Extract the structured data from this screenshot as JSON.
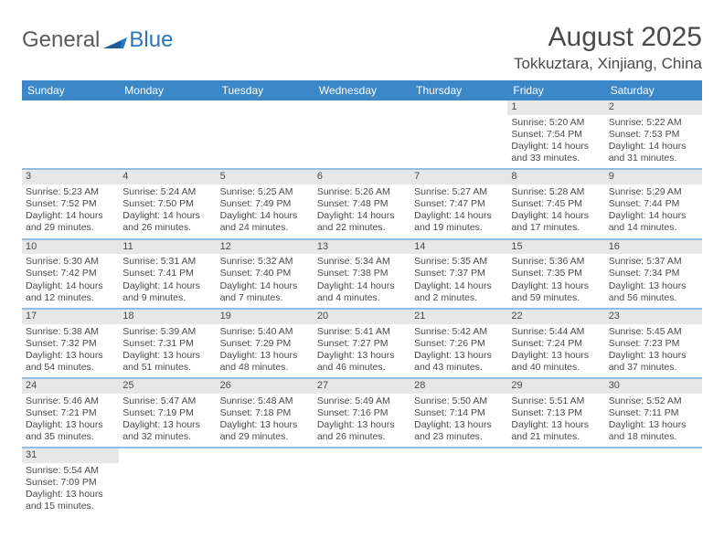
{
  "brand": {
    "part1": "General",
    "part2": "Blue"
  },
  "title": "August 2025",
  "location": "Tokkuztara, Xinjiang, China",
  "theme": {
    "header_bg": "#3b87c8",
    "header_fg": "#ffffff",
    "daynum_bg": "#e7e7e7",
    "separator": "#3b87c8",
    "text": "#4a4a4a",
    "page_bg": "#ffffff",
    "brand_blue": "#2a75bb",
    "font_family": "Arial, Helvetica, sans-serif",
    "title_fontsize_pt": 22,
    "location_fontsize_pt": 13,
    "header_fontsize_pt": 9,
    "cell_fontsize_pt": 8
  },
  "day_names": [
    "Sunday",
    "Monday",
    "Tuesday",
    "Wednesday",
    "Thursday",
    "Friday",
    "Saturday"
  ],
  "weeks": [
    [
      {
        "blank": true
      },
      {
        "blank": true
      },
      {
        "blank": true
      },
      {
        "blank": true
      },
      {
        "blank": true
      },
      {
        "n": "1",
        "sr": "Sunrise: 5:20 AM",
        "ss": "Sunset: 7:54 PM",
        "d1": "Daylight: 14 hours",
        "d2": "and 33 minutes."
      },
      {
        "n": "2",
        "sr": "Sunrise: 5:22 AM",
        "ss": "Sunset: 7:53 PM",
        "d1": "Daylight: 14 hours",
        "d2": "and 31 minutes."
      }
    ],
    [
      {
        "n": "3",
        "sr": "Sunrise: 5:23 AM",
        "ss": "Sunset: 7:52 PM",
        "d1": "Daylight: 14 hours",
        "d2": "and 29 minutes."
      },
      {
        "n": "4",
        "sr": "Sunrise: 5:24 AM",
        "ss": "Sunset: 7:50 PM",
        "d1": "Daylight: 14 hours",
        "d2": "and 26 minutes."
      },
      {
        "n": "5",
        "sr": "Sunrise: 5:25 AM",
        "ss": "Sunset: 7:49 PM",
        "d1": "Daylight: 14 hours",
        "d2": "and 24 minutes."
      },
      {
        "n": "6",
        "sr": "Sunrise: 5:26 AM",
        "ss": "Sunset: 7:48 PM",
        "d1": "Daylight: 14 hours",
        "d2": "and 22 minutes."
      },
      {
        "n": "7",
        "sr": "Sunrise: 5:27 AM",
        "ss": "Sunset: 7:47 PM",
        "d1": "Daylight: 14 hours",
        "d2": "and 19 minutes."
      },
      {
        "n": "8",
        "sr": "Sunrise: 5:28 AM",
        "ss": "Sunset: 7:45 PM",
        "d1": "Daylight: 14 hours",
        "d2": "and 17 minutes."
      },
      {
        "n": "9",
        "sr": "Sunrise: 5:29 AM",
        "ss": "Sunset: 7:44 PM",
        "d1": "Daylight: 14 hours",
        "d2": "and 14 minutes."
      }
    ],
    [
      {
        "n": "10",
        "sr": "Sunrise: 5:30 AM",
        "ss": "Sunset: 7:42 PM",
        "d1": "Daylight: 14 hours",
        "d2": "and 12 minutes."
      },
      {
        "n": "11",
        "sr": "Sunrise: 5:31 AM",
        "ss": "Sunset: 7:41 PM",
        "d1": "Daylight: 14 hours",
        "d2": "and 9 minutes."
      },
      {
        "n": "12",
        "sr": "Sunrise: 5:32 AM",
        "ss": "Sunset: 7:40 PM",
        "d1": "Daylight: 14 hours",
        "d2": "and 7 minutes."
      },
      {
        "n": "13",
        "sr": "Sunrise: 5:34 AM",
        "ss": "Sunset: 7:38 PM",
        "d1": "Daylight: 14 hours",
        "d2": "and 4 minutes."
      },
      {
        "n": "14",
        "sr": "Sunrise: 5:35 AM",
        "ss": "Sunset: 7:37 PM",
        "d1": "Daylight: 14 hours",
        "d2": "and 2 minutes."
      },
      {
        "n": "15",
        "sr": "Sunrise: 5:36 AM",
        "ss": "Sunset: 7:35 PM",
        "d1": "Daylight: 13 hours",
        "d2": "and 59 minutes."
      },
      {
        "n": "16",
        "sr": "Sunrise: 5:37 AM",
        "ss": "Sunset: 7:34 PM",
        "d1": "Daylight: 13 hours",
        "d2": "and 56 minutes."
      }
    ],
    [
      {
        "n": "17",
        "sr": "Sunrise: 5:38 AM",
        "ss": "Sunset: 7:32 PM",
        "d1": "Daylight: 13 hours",
        "d2": "and 54 minutes."
      },
      {
        "n": "18",
        "sr": "Sunrise: 5:39 AM",
        "ss": "Sunset: 7:31 PM",
        "d1": "Daylight: 13 hours",
        "d2": "and 51 minutes."
      },
      {
        "n": "19",
        "sr": "Sunrise: 5:40 AM",
        "ss": "Sunset: 7:29 PM",
        "d1": "Daylight: 13 hours",
        "d2": "and 48 minutes."
      },
      {
        "n": "20",
        "sr": "Sunrise: 5:41 AM",
        "ss": "Sunset: 7:27 PM",
        "d1": "Daylight: 13 hours",
        "d2": "and 46 minutes."
      },
      {
        "n": "21",
        "sr": "Sunrise: 5:42 AM",
        "ss": "Sunset: 7:26 PM",
        "d1": "Daylight: 13 hours",
        "d2": "and 43 minutes."
      },
      {
        "n": "22",
        "sr": "Sunrise: 5:44 AM",
        "ss": "Sunset: 7:24 PM",
        "d1": "Daylight: 13 hours",
        "d2": "and 40 minutes."
      },
      {
        "n": "23",
        "sr": "Sunrise: 5:45 AM",
        "ss": "Sunset: 7:23 PM",
        "d1": "Daylight: 13 hours",
        "d2": "and 37 minutes."
      }
    ],
    [
      {
        "n": "24",
        "sr": "Sunrise: 5:46 AM",
        "ss": "Sunset: 7:21 PM",
        "d1": "Daylight: 13 hours",
        "d2": "and 35 minutes."
      },
      {
        "n": "25",
        "sr": "Sunrise: 5:47 AM",
        "ss": "Sunset: 7:19 PM",
        "d1": "Daylight: 13 hours",
        "d2": "and 32 minutes."
      },
      {
        "n": "26",
        "sr": "Sunrise: 5:48 AM",
        "ss": "Sunset: 7:18 PM",
        "d1": "Daylight: 13 hours",
        "d2": "and 29 minutes."
      },
      {
        "n": "27",
        "sr": "Sunrise: 5:49 AM",
        "ss": "Sunset: 7:16 PM",
        "d1": "Daylight: 13 hours",
        "d2": "and 26 minutes."
      },
      {
        "n": "28",
        "sr": "Sunrise: 5:50 AM",
        "ss": "Sunset: 7:14 PM",
        "d1": "Daylight: 13 hours",
        "d2": "and 23 minutes."
      },
      {
        "n": "29",
        "sr": "Sunrise: 5:51 AM",
        "ss": "Sunset: 7:13 PM",
        "d1": "Daylight: 13 hours",
        "d2": "and 21 minutes."
      },
      {
        "n": "30",
        "sr": "Sunrise: 5:52 AM",
        "ss": "Sunset: 7:11 PM",
        "d1": "Daylight: 13 hours",
        "d2": "and 18 minutes."
      }
    ],
    [
      {
        "n": "31",
        "sr": "Sunrise: 5:54 AM",
        "ss": "Sunset: 7:09 PM",
        "d1": "Daylight: 13 hours",
        "d2": "and 15 minutes."
      },
      {
        "blank": true
      },
      {
        "blank": true
      },
      {
        "blank": true
      },
      {
        "blank": true
      },
      {
        "blank": true
      },
      {
        "blank": true
      }
    ]
  ]
}
